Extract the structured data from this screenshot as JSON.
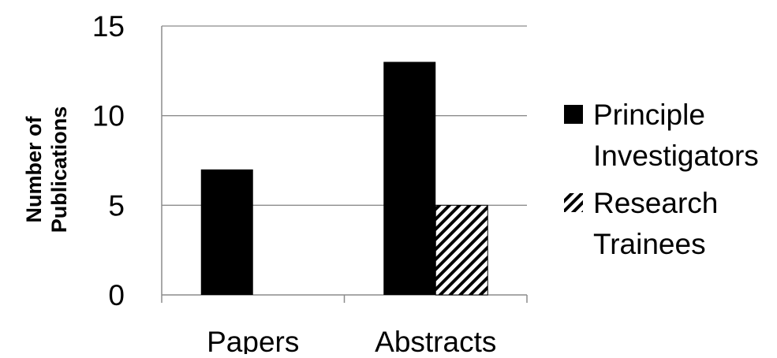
{
  "chart_data": {
    "type": "bar",
    "title": "",
    "xlabel": "",
    "ylabel": "Number of Publications",
    "ylabel_lines": [
      "Number of",
      "Publications"
    ],
    "categories": [
      "Papers",
      "Abstracts"
    ],
    "series": [
      {
        "name": "Principle Investigators",
        "legend_lines": [
          "Principle",
          "Investigators"
        ],
        "values": [
          7,
          13
        ],
        "color": "#000000",
        "pattern": "solid"
      },
      {
        "name": "Research Trainees",
        "legend_lines": [
          "Research",
          "Trainees"
        ],
        "values": [
          0,
          5
        ],
        "color": "#000000",
        "pattern": "diagonal-hatch"
      }
    ],
    "ylim": [
      0,
      15
    ],
    "yticks": [
      0,
      5,
      10,
      15
    ],
    "grid": true,
    "legend_position": "right"
  }
}
